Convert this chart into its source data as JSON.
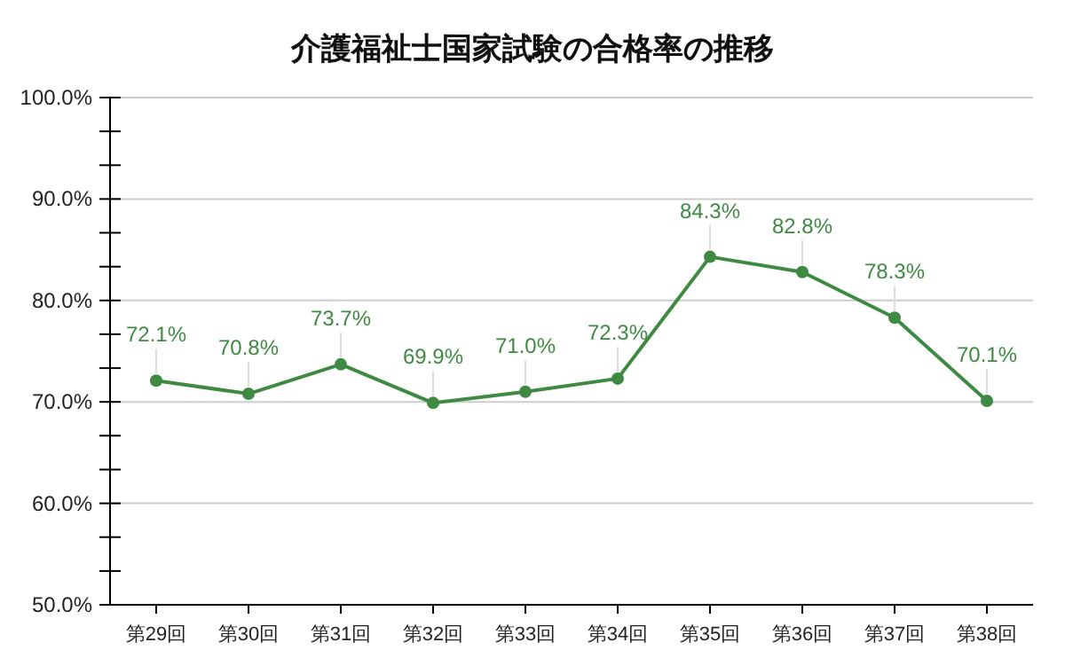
{
  "chart_data": {
    "type": "line",
    "title": "介護福祉士国家試験の合格率の推移",
    "categories": [
      "第29回",
      "第30回",
      "第31回",
      "第32回",
      "第33回",
      "第34回",
      "第35回",
      "第36回",
      "第37回",
      "第38回"
    ],
    "series": [
      {
        "color": "#3f8a43",
        "values": [
          72.1,
          70.8,
          73.7,
          69.9,
          71.0,
          72.3,
          84.3,
          82.8,
          78.3,
          70.1
        ],
        "value_labels": [
          "72.1%",
          "70.8%",
          "73.7%",
          "69.9%",
          "71.0%",
          "72.3%",
          "84.3%",
          "82.8%",
          "78.3%",
          "70.1%"
        ]
      }
    ],
    "ylim": [
      50,
      100
    ],
    "yticks": [
      {
        "value": 50,
        "label": "50.0%"
      },
      {
        "value": 53.33,
        "label": null
      },
      {
        "value": 56.67,
        "label": null
      },
      {
        "value": 60,
        "label": "60.0%"
      },
      {
        "value": 63.33,
        "label": null
      },
      {
        "value": 66.67,
        "label": null
      },
      {
        "value": 70,
        "label": "70.0%"
      },
      {
        "value": 73.33,
        "label": null
      },
      {
        "value": 76.67,
        "label": null
      },
      {
        "value": 80,
        "label": "80.0%"
      },
      {
        "value": 83.33,
        "label": null
      },
      {
        "value": 86.67,
        "label": null
      },
      {
        "value": 90,
        "label": "90.0%"
      },
      {
        "value": 93.33,
        "label": null
      },
      {
        "value": 96.67,
        "label": null
      },
      {
        "value": 100,
        "label": "100.0%"
      }
    ],
    "grid": "y",
    "marker": "circle",
    "line_style": "solid"
  }
}
